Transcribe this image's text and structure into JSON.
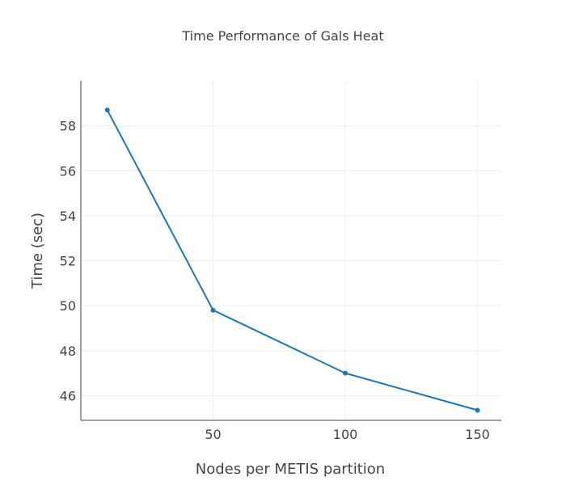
{
  "chart_data": {
    "type": "line",
    "title": "Time Performance of Gals Heat",
    "xlabel": "Nodes per METIS partition",
    "ylabel": "Time (sec)",
    "x": [
      10,
      50,
      100,
      150
    ],
    "series": [
      {
        "values": [
          58.7,
          49.8,
          47.0,
          45.35
        ],
        "color": "#1f77b4"
      }
    ],
    "xlim": [
      0,
      159
    ],
    "ylim": [
      44.9,
      60.0
    ],
    "xticks": [
      50,
      100,
      150
    ],
    "xtick_labels": [
      "50",
      "100",
      "150"
    ],
    "yticks": [
      46,
      48,
      50,
      52,
      54,
      56,
      58
    ],
    "ytick_labels": [
      "46",
      "48",
      "50",
      "52",
      "54",
      "56",
      "58"
    ],
    "grid": true,
    "axis_color": "#444444",
    "grid_color": "#eeeeee"
  }
}
